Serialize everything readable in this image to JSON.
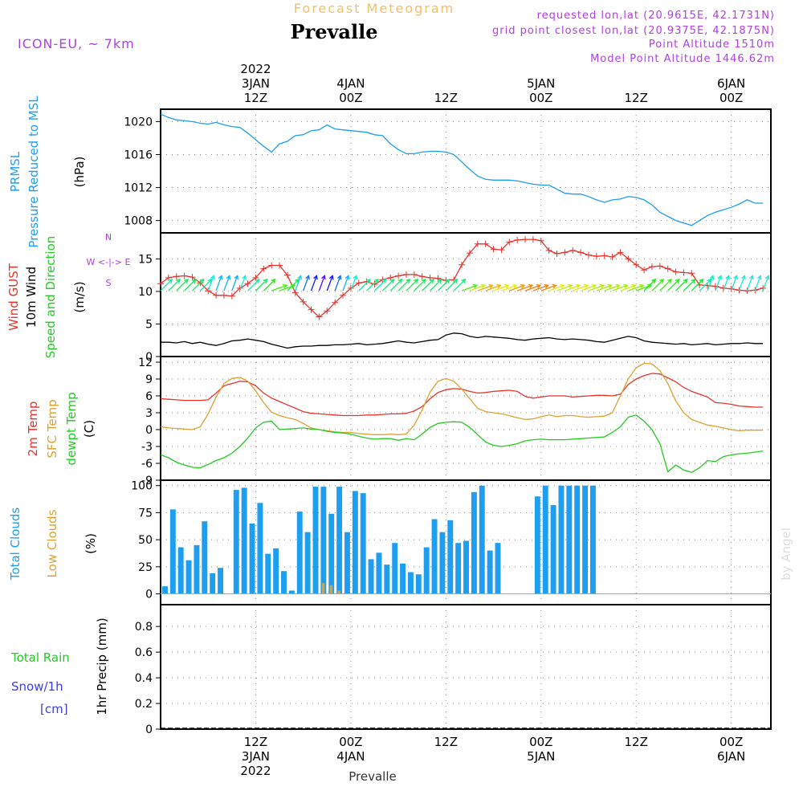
{
  "header": {
    "subtitle": "Forecast Meteogram",
    "title": "Prevalle",
    "model": "ICON-EU, ~ 7km",
    "requested": "requested lon,lat (20.9615E, 42.1731N)",
    "grid_point": "grid point closest lon,lat (20.9375E, 42.1875N)",
    "point_altitude": "Point Altitude 1510m",
    "model_altitude": "Model Point Altitude 1446.62m",
    "bottom_label": "Prevalle",
    "watermark": "by Angel"
  },
  "time_axis": {
    "ticks": [
      {
        "hour": 12,
        "label": "12Z",
        "date": "3JAN",
        "year": "2022"
      },
      {
        "hour": 24,
        "label": "00Z",
        "date": "4JAN",
        "year": ""
      },
      {
        "hour": 36,
        "label": "12Z",
        "date": "",
        "year": ""
      },
      {
        "hour": 48,
        "label": "00Z",
        "date": "5JAN",
        "year": ""
      },
      {
        "hour": 60,
        "label": "12Z",
        "date": "",
        "year": ""
      },
      {
        "hour": 72,
        "label": "00Z",
        "date": "6JAN",
        "year": ""
      }
    ],
    "start_hour": 0,
    "end_hour": 77
  },
  "panels": {
    "pressure": {
      "label1": "PRMSL",
      "label2": "Pressure Reduced to MSL",
      "unit": "(hPa)",
      "yticks": [
        1008,
        1012,
        1016,
        1020
      ],
      "ylim": [
        1006.5,
        1021.5
      ]
    },
    "wind": {
      "label_gust": "Wind GUST",
      "label_wind": "10m Wind",
      "label_dir": "Speed and Direction",
      "unit": "(m/s)",
      "compass_n": "N",
      "compass_s": "S",
      "compass_ew": "W <-|-> E",
      "yticks": [
        0,
        5,
        10,
        15
      ],
      "ylim": [
        0,
        19
      ]
    },
    "temp": {
      "label1": "2m Temp",
      "label2": "SFC Temp",
      "label3": "dewpt Temp",
      "unit": "(C)",
      "yticks": [
        -9,
        -6,
        -3,
        0,
        3,
        6,
        9,
        12
      ],
      "ylim": [
        -9,
        13
      ]
    },
    "clouds": {
      "label1": "Total Clouds",
      "label2": "Low Clouds",
      "unit": "(%)",
      "yticks": [
        0,
        25,
        50,
        75,
        100
      ],
      "ylim": [
        -10,
        105
      ]
    },
    "precip": {
      "label_rain": "Total Rain",
      "label_snow": "Snow/1h",
      "label_cm": "[cm]",
      "unit": "1hr Precip (mm)",
      "yticks": [
        0,
        0.2,
        0.4,
        0.6,
        0.8
      ],
      "ylim": [
        0,
        0.97
      ]
    }
  },
  "colors": {
    "pressure": "#1e9ef0",
    "gust": "#e8342c",
    "wind": "#000000",
    "t2m": "#e8342c",
    "sfc": "#e0a030",
    "dewpt": "#22cc22",
    "total_clouds": "#1e9ef0",
    "low_clouds": "#e0a030",
    "rain": "#22cc22",
    "snow": "#3c3cf0",
    "compass": "#b040e0"
  },
  "chart_data": [
    {
      "type": "line",
      "name": "PRMSL",
      "x": [
        0,
        1,
        2,
        3,
        4,
        5,
        6,
        7,
        8,
        9,
        10,
        11,
        12,
        13,
        14,
        15,
        16,
        17,
        18,
        19,
        20,
        21,
        22,
        23,
        24,
        25,
        26,
        27,
        28,
        29,
        30,
        31,
        32,
        33,
        34,
        35,
        36,
        37,
        38,
        39,
        40,
        41,
        42,
        43,
        44,
        45,
        46,
        47,
        48,
        49,
        50,
        51,
        52,
        53,
        54,
        55,
        56,
        57,
        58,
        59,
        60,
        61,
        62,
        63,
        64,
        65,
        66,
        67,
        68,
        69,
        70,
        71,
        72,
        73,
        74,
        75,
        76
      ],
      "y": [
        1020.9,
        1020.5,
        1020.2,
        1020.1,
        1020.0,
        1019.8,
        1019.7,
        1019.9,
        1019.6,
        1019.4,
        1019.3,
        1018.6,
        1017.8,
        1017.0,
        1016.3,
        1017.3,
        1017.6,
        1018.3,
        1018.4,
        1018.9,
        1019.0,
        1019.6,
        1019.1,
        1019.0,
        1018.9,
        1018.8,
        1018.7,
        1018.4,
        1018.3,
        1017.3,
        1016.6,
        1016.1,
        1016.1,
        1016.3,
        1016.4,
        1016.4,
        1016.3,
        1016.0,
        1015.1,
        1014.2,
        1013.4,
        1013.0,
        1012.9,
        1012.9,
        1012.9,
        1012.8,
        1012.6,
        1012.4,
        1012.3,
        1012.3,
        1011.8,
        1011.3,
        1011.2,
        1011.2,
        1010.9,
        1010.5,
        1010.2,
        1010.5,
        1010.6,
        1010.9,
        1010.8,
        1010.5,
        1009.9,
        1009.0,
        1008.5,
        1008.0,
        1007.7,
        1007.4,
        1008.0,
        1008.6,
        1009.0,
        1009.3,
        1009.6,
        1010.0,
        1010.5,
        1010.1,
        1010.1
      ]
    },
    {
      "type": "line",
      "name": "Wind GUST",
      "x": [
        0,
        1,
        2,
        3,
        4,
        5,
        6,
        7,
        8,
        9,
        10,
        11,
        12,
        13,
        14,
        15,
        16,
        17,
        18,
        19,
        20,
        21,
        22,
        23,
        24,
        25,
        26,
        27,
        28,
        29,
        30,
        31,
        32,
        33,
        34,
        35,
        36,
        37,
        38,
        39,
        40,
        41,
        42,
        43,
        44,
        45,
        46,
        47,
        48,
        49,
        50,
        51,
        52,
        53,
        54,
        55,
        56,
        57,
        58,
        59,
        60,
        61,
        62,
        63,
        64,
        65,
        66,
        67,
        68,
        69,
        70,
        71,
        72,
        73,
        74,
        75,
        76
      ],
      "y": [
        11.2,
        12.1,
        12.3,
        12.4,
        12.2,
        11.3,
        10.1,
        9.4,
        9.4,
        9.3,
        10.5,
        11.2,
        12.1,
        13.5,
        14.0,
        14.0,
        12.5,
        9.8,
        8.4,
        7.2,
        6.1,
        7.0,
        8.3,
        9.4,
        10.5,
        11.3,
        11.5,
        11.1,
        11.8,
        12.1,
        12.4,
        12.6,
        12.6,
        12.3,
        12.1,
        12.0,
        11.7,
        11.8,
        14.1,
        15.9,
        17.3,
        17.3,
        16.5,
        16.4,
        17.6,
        17.9,
        18.0,
        18.0,
        17.8,
        16.3,
        15.8,
        16.0,
        16.3,
        16.0,
        15.6,
        15.4,
        15.5,
        15.3,
        16.0,
        15.0,
        14.1,
        13.3,
        13.8,
        13.9,
        13.5,
        13.0,
        12.9,
        12.8,
        11.0,
        10.9,
        10.8,
        10.5,
        10.4,
        10.2,
        10.1,
        10.2,
        10.5
      ]
    },
    {
      "type": "line",
      "name": "10m Wind",
      "x": [
        0,
        1,
        2,
        3,
        4,
        5,
        6,
        7,
        8,
        9,
        10,
        11,
        12,
        13,
        14,
        15,
        16,
        17,
        18,
        19,
        20,
        21,
        22,
        23,
        24,
        25,
        26,
        27,
        28,
        29,
        30,
        31,
        32,
        33,
        34,
        35,
        36,
        37,
        38,
        39,
        40,
        41,
        42,
        43,
        44,
        45,
        46,
        47,
        48,
        49,
        50,
        51,
        52,
        53,
        54,
        55,
        56,
        57,
        58,
        59,
        60,
        61,
        62,
        63,
        64,
        65,
        66,
        67,
        68,
        69,
        70,
        71,
        72,
        73,
        74,
        75,
        76
      ],
      "y": [
        2.2,
        2.2,
        2.1,
        2.3,
        2.0,
        2.2,
        1.9,
        1.7,
        2.0,
        2.4,
        2.5,
        2.7,
        2.5,
        2.3,
        1.9,
        1.6,
        1.3,
        1.5,
        1.6,
        1.6,
        1.7,
        1.7,
        1.8,
        1.8,
        1.9,
        2.0,
        1.8,
        1.9,
        2.0,
        2.2,
        2.4,
        2.2,
        2.1,
        2.3,
        2.5,
        2.6,
        3.3,
        3.6,
        3.5,
        3.1,
        2.9,
        3.1,
        3.0,
        2.9,
        2.8,
        2.6,
        2.5,
        2.7,
        2.8,
        2.9,
        2.7,
        2.6,
        2.7,
        2.6,
        2.5,
        2.3,
        2.2,
        2.5,
        2.8,
        3.1,
        2.9,
        2.4,
        2.2,
        2.1,
        2.0,
        1.9,
        2.0,
        1.8,
        1.9,
        2.0,
        1.8,
        1.9,
        2.0,
        2.0,
        2.1,
        2.0,
        2.0
      ]
    },
    {
      "type": "line",
      "name": "2m Temp",
      "x": [
        0,
        1,
        2,
        3,
        4,
        5,
        6,
        7,
        8,
        9,
        10,
        11,
        12,
        13,
        14,
        15,
        16,
        17,
        18,
        19,
        20,
        21,
        22,
        23,
        24,
        25,
        26,
        27,
        28,
        29,
        30,
        31,
        32,
        33,
        34,
        35,
        36,
        37,
        38,
        39,
        40,
        41,
        42,
        43,
        44,
        45,
        46,
        47,
        48,
        49,
        50,
        51,
        52,
        53,
        54,
        55,
        56,
        57,
        58,
        59,
        60,
        61,
        62,
        63,
        64,
        65,
        66,
        67,
        68,
        69,
        70,
        71,
        72,
        73,
        74,
        75,
        76
      ],
      "y": [
        5.5,
        5.4,
        5.3,
        5.2,
        5.2,
        5.2,
        5.3,
        6.5,
        7.8,
        8.2,
        8.6,
        8.5,
        7.8,
        6.5,
        5.6,
        5.0,
        4.4,
        3.8,
        3.2,
        2.9,
        2.8,
        2.7,
        2.6,
        2.5,
        2.5,
        2.5,
        2.6,
        2.6,
        2.7,
        2.8,
        2.8,
        2.9,
        3.3,
        4.1,
        5.5,
        6.6,
        7.1,
        7.3,
        7.2,
        6.8,
        6.5,
        6.6,
        6.8,
        6.9,
        7.0,
        6.8,
        5.9,
        5.6,
        5.8,
        6.0,
        6.0,
        6.0,
        5.8,
        5.9,
        6.0,
        6.1,
        6.1,
        6.0,
        6.3,
        8.0,
        9.0,
        9.6,
        10.0,
        9.9,
        9.2,
        8.5,
        7.5,
        6.8,
        6.3,
        5.8,
        4.8,
        4.7,
        4.5,
        4.2,
        4.1,
        4.0,
        4.0
      ]
    },
    {
      "type": "line",
      "name": "SFC Temp",
      "x": [
        0,
        1,
        2,
        3,
        4,
        5,
        6,
        7,
        8,
        9,
        10,
        11,
        12,
        13,
        14,
        15,
        16,
        17,
        18,
        19,
        20,
        21,
        22,
        23,
        24,
        25,
        26,
        27,
        28,
        29,
        30,
        31,
        32,
        33,
        34,
        35,
        36,
        37,
        38,
        39,
        40,
        41,
        42,
        43,
        44,
        45,
        46,
        47,
        48,
        49,
        50,
        51,
        52,
        53,
        54,
        55,
        56,
        57,
        58,
        59,
        60,
        61,
        62,
        63,
        64,
        65,
        66,
        67,
        68,
        69,
        70,
        71,
        72,
        73,
        74,
        75,
        76
      ],
      "y": [
        0.5,
        0.3,
        0.2,
        0.1,
        0.0,
        0.5,
        2.8,
        5.8,
        8.2,
        9.1,
        9.3,
        8.6,
        6.9,
        4.8,
        3.1,
        2.5,
        2.1,
        1.8,
        1.1,
        0.3,
        0.0,
        -0.2,
        -0.4,
        -0.5,
        -0.5,
        -0.7,
        -0.8,
        -0.9,
        -0.9,
        -0.8,
        -0.9,
        -0.8,
        0.8,
        3.5,
        6.7,
        8.6,
        9.1,
        8.6,
        7.2,
        5.5,
        3.8,
        3.2,
        3.0,
        2.8,
        2.5,
        2.1,
        1.8,
        1.9,
        2.3,
        2.6,
        2.3,
        2.5,
        2.5,
        2.3,
        2.2,
        2.3,
        2.4,
        3.0,
        6.0,
        9.0,
        11.0,
        11.8,
        11.7,
        10.5,
        8.2,
        5.1,
        3.0,
        1.8,
        1.3,
        0.8,
        0.6,
        0.3,
        0.0,
        -0.2,
        -0.1,
        -0.1,
        -0.1
      ]
    },
    {
      "type": "line",
      "name": "dewpt Temp",
      "x": [
        0,
        1,
        2,
        3,
        4,
        5,
        6,
        7,
        8,
        9,
        10,
        11,
        12,
        13,
        14,
        15,
        16,
        17,
        18,
        19,
        20,
        21,
        22,
        23,
        24,
        25,
        26,
        27,
        28,
        29,
        30,
        31,
        32,
        33,
        34,
        35,
        36,
        37,
        38,
        39,
        40,
        41,
        42,
        43,
        44,
        45,
        46,
        47,
        48,
        49,
        50,
        51,
        52,
        53,
        54,
        55,
        56,
        57,
        58,
        59,
        60,
        61,
        62,
        63,
        64,
        65,
        66,
        67,
        68,
        69,
        70,
        71,
        72,
        73,
        74,
        75,
        76
      ],
      "y": [
        -4.5,
        -5.0,
        -5.8,
        -6.3,
        -6.7,
        -6.8,
        -6.2,
        -5.5,
        -5.0,
        -4.2,
        -3.0,
        -1.5,
        0.3,
        1.3,
        1.5,
        0.0,
        0.1,
        0.2,
        0.3,
        0.1,
        0.0,
        -0.3,
        -0.5,
        -0.6,
        -0.8,
        -1.2,
        -1.5,
        -1.7,
        -1.6,
        -1.6,
        -1.9,
        -1.6,
        -1.8,
        -0.8,
        0.4,
        1.1,
        1.3,
        1.4,
        1.3,
        0.4,
        -0.9,
        -2.2,
        -2.8,
        -3.0,
        -2.8,
        -2.5,
        -2.0,
        -1.8,
        -1.7,
        -1.8,
        -1.8,
        -1.8,
        -1.7,
        -1.6,
        -1.5,
        -1.4,
        -1.3,
        -0.5,
        0.5,
        2.2,
        2.6,
        1.5,
        0.0,
        -2.5,
        -7.5,
        -6.3,
        -7.2,
        -7.6,
        -6.8,
        -5.5,
        -5.7,
        -4.8,
        -4.5,
        -4.3,
        -4.2,
        -4.0,
        -3.8
      ]
    },
    {
      "type": "bar",
      "name": "Total Clouds",
      "x": [
        0,
        1,
        2,
        3,
        4,
        5,
        6,
        7,
        8,
        9,
        10,
        11,
        12,
        13,
        14,
        15,
        16,
        17,
        18,
        19,
        20,
        21,
        22,
        23,
        24,
        25,
        26,
        27,
        28,
        29,
        30,
        31,
        32,
        33,
        34,
        35,
        36,
        37,
        38,
        39,
        40,
        41,
        42,
        43,
        44,
        45,
        46,
        47,
        48,
        49,
        50,
        51,
        52,
        53,
        54,
        55,
        56,
        57,
        58,
        59,
        60,
        61,
        62,
        63,
        64,
        65,
        66,
        67,
        68,
        69,
        70,
        71,
        72,
        73,
        74,
        75,
        76
      ],
      "y": [
        7,
        78,
        43,
        31,
        45,
        67,
        19,
        24,
        0,
        96,
        98,
        65,
        84,
        37,
        42,
        21,
        3,
        76,
        57,
        99,
        99,
        74,
        99,
        57,
        95,
        93,
        32,
        38,
        27,
        47,
        28,
        20,
        18,
        43,
        69,
        57,
        68,
        47,
        49,
        94,
        100,
        40,
        47,
        0,
        0,
        0,
        0,
        90,
        100,
        82,
        100,
        100,
        100,
        100,
        100,
        0,
        0,
        0,
        0,
        0,
        0,
        0,
        0,
        0,
        0,
        0,
        0,
        0,
        0,
        0,
        0,
        0,
        0,
        0,
        0,
        0,
        0
      ]
    },
    {
      "type": "bar",
      "name": "Low Clouds",
      "x": [
        0,
        1,
        2,
        3,
        4,
        5,
        6,
        7,
        8,
        9,
        10,
        11,
        12,
        13,
        14,
        15,
        16,
        17,
        18,
        19,
        20,
        21,
        22,
        23,
        24,
        25,
        26,
        27,
        28,
        29,
        30,
        31,
        32,
        33,
        34,
        35,
        36,
        37,
        38,
        39,
        40,
        41,
        42,
        43,
        44,
        45,
        46,
        47,
        48,
        49,
        50,
        51,
        52,
        53,
        54,
        55,
        56,
        57,
        58,
        59,
        60,
        61,
        62,
        63,
        64,
        65,
        66,
        67,
        68,
        69,
        70,
        71,
        72,
        73,
        74,
        75,
        76
      ],
      "y": [
        0,
        0,
        0,
        0,
        0,
        0,
        0,
        0,
        0,
        0,
        0,
        0,
        0,
        0,
        0,
        0,
        0,
        0,
        0,
        0,
        10,
        8,
        3,
        0,
        0,
        0,
        0,
        0,
        0,
        0,
        0,
        0,
        0,
        0,
        0,
        0,
        0,
        0,
        0,
        0,
        0,
        0,
        0,
        0,
        0,
        0,
        0,
        0,
        0,
        0,
        0,
        0,
        0,
        0,
        0,
        0,
        0,
        0,
        0,
        0,
        0,
        0,
        0,
        0,
        0,
        0,
        0,
        0,
        0,
        0,
        0,
        0,
        0,
        0,
        0,
        0,
        0
      ]
    },
    {
      "type": "bar",
      "name": "1hr Precip",
      "x": [
        0,
        76
      ],
      "y": [
        0,
        0
      ]
    }
  ]
}
